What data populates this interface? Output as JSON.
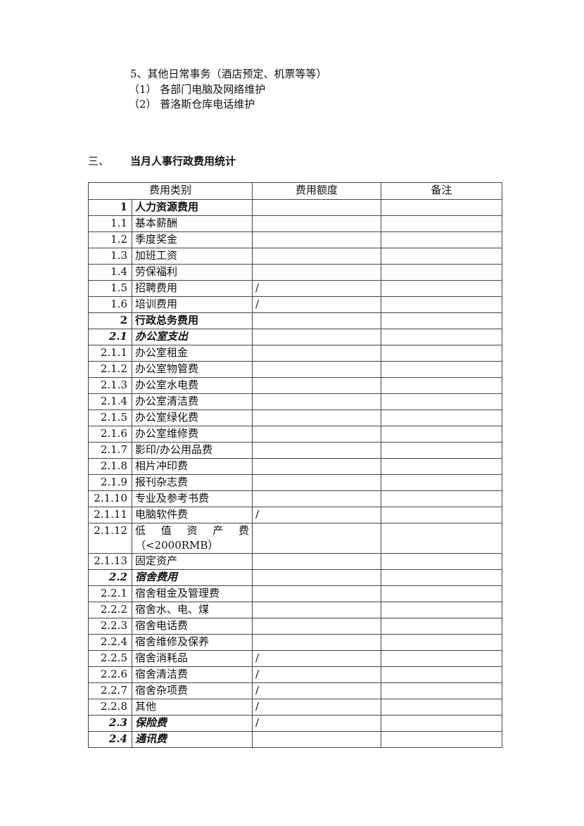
{
  "intro": {
    "item5": "5、其他日常事务（酒店预定、机票等等）",
    "sub1": "（1）  各部门电脑及网络维护",
    "sub2": "（2）  普洛斯仓库电话维护"
  },
  "section": {
    "number": "三、",
    "title": "当月人事行政费用统计"
  },
  "table": {
    "headers": [
      "费用类别",
      "费用额度",
      "备注"
    ],
    "rows": [
      {
        "num": "1",
        "name": "人力资源费用",
        "amount": "",
        "note": "",
        "style": "b"
      },
      {
        "num": "1.1",
        "name": "基本薪酬",
        "amount": "",
        "note": ""
      },
      {
        "num": "1.2",
        "name": "季度奖金",
        "amount": "",
        "note": ""
      },
      {
        "num": "1.3",
        "name": "加班工资",
        "amount": "",
        "note": ""
      },
      {
        "num": "1.4",
        "name": "劳保福利",
        "amount": "",
        "note": ""
      },
      {
        "num": "1.5",
        "name": "招聘费用",
        "amount": "/",
        "note": ""
      },
      {
        "num": "1.6",
        "name": "培训费用",
        "amount": "/",
        "note": ""
      },
      {
        "num": "2",
        "name": "行政总务费用",
        "amount": "",
        "note": "",
        "style": "b"
      },
      {
        "num": "2.1",
        "name": "办公室支出",
        "amount": "",
        "note": "",
        "style": "bi"
      },
      {
        "num": "2.1.1",
        "name": "办公室租金",
        "amount": "",
        "note": ""
      },
      {
        "num": "2.1.2",
        "name": "办公室物管费",
        "amount": "",
        "note": ""
      },
      {
        "num": "2.1.3",
        "name": "办公室水电费",
        "amount": "",
        "note": ""
      },
      {
        "num": "2.1.4",
        "name": "办公室清洁费",
        "amount": "",
        "note": ""
      },
      {
        "num": "2.1.5",
        "name": "办公室绿化费",
        "amount": "",
        "note": ""
      },
      {
        "num": "2.1.6",
        "name": "办公室维修费",
        "amount": "",
        "note": ""
      },
      {
        "num": "2.1.7",
        "name": "影印/办公用品费",
        "amount": "",
        "note": ""
      },
      {
        "num": "2.1.8",
        "name": "相片冲印费",
        "amount": "",
        "note": ""
      },
      {
        "num": "2.1.9",
        "name": "报刊杂志费",
        "amount": "",
        "note": ""
      },
      {
        "num": "2.1.10",
        "name": "专业及参考书费",
        "amount": "",
        "note": ""
      },
      {
        "num": "2.1.11",
        "name": "电脑软件费",
        "amount": "/",
        "note": ""
      },
      {
        "num": "2.1.12",
        "name": "低 值 资 产 费 （<2000RMB）",
        "amount": "",
        "note": "",
        "style": "spread"
      },
      {
        "num": "2.1.13",
        "name": "固定资产",
        "amount": "",
        "note": ""
      },
      {
        "num": "2.2",
        "name": "宿舍费用",
        "amount": "",
        "note": "",
        "style": "bi"
      },
      {
        "num": "2.2.1",
        "name": "宿舍租金及管理费",
        "amount": "",
        "note": ""
      },
      {
        "num": "2.2.2",
        "name": "宿舍水、电、煤",
        "amount": "",
        "note": ""
      },
      {
        "num": "2.2.3",
        "name": "宿舍电话费",
        "amount": "",
        "note": ""
      },
      {
        "num": "2.2.4",
        "name": "宿舍维修及保养",
        "amount": "",
        "note": ""
      },
      {
        "num": "2.2.5",
        "name": "宿舍消耗品",
        "amount": "/",
        "note": ""
      },
      {
        "num": "2.2.6",
        "name": "宿舍清洁费",
        "amount": "/",
        "note": ""
      },
      {
        "num": "2.2.7",
        "name": "宿舍杂项费",
        "amount": "/",
        "note": ""
      },
      {
        "num": "2.2.8",
        "name": "其他",
        "amount": "/",
        "note": ""
      },
      {
        "num": "2.3",
        "name": "保险费",
        "amount": "/",
        "note": "",
        "style": "bi"
      },
      {
        "num": "2.4",
        "name": "通讯费",
        "amount": "",
        "note": "",
        "style": "bi"
      }
    ]
  }
}
